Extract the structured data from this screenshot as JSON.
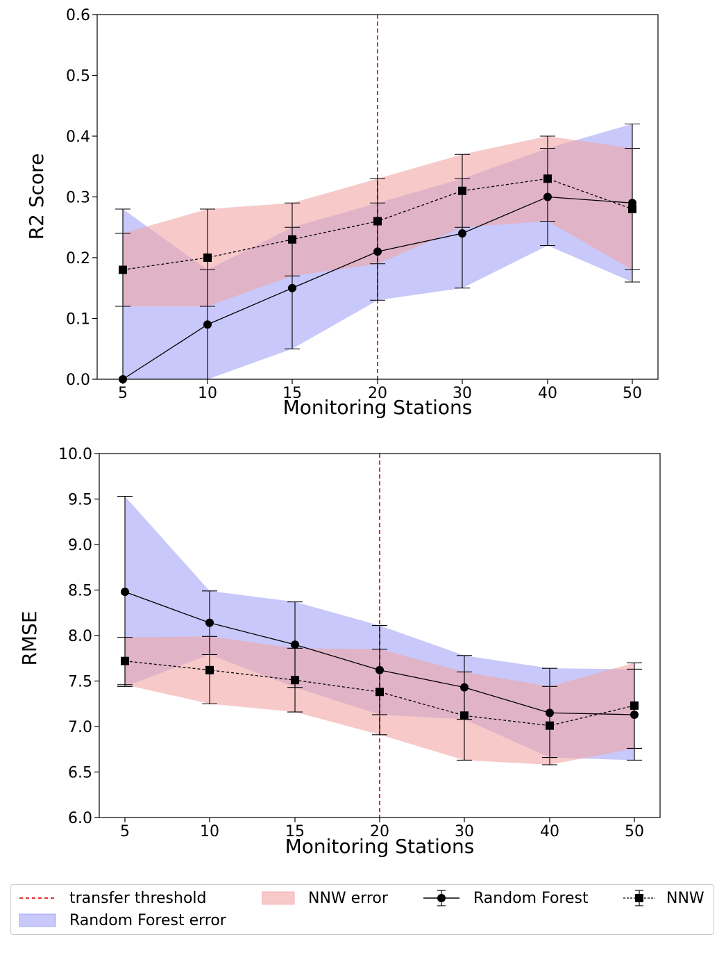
{
  "chart_data": [
    {
      "type": "line",
      "categories": [
        "5",
        "10",
        "15",
        "20",
        "30",
        "40",
        "50"
      ],
      "xlabel": "Monitoring Stations",
      "ylabel": "R2 Score",
      "ylim": [
        0.0,
        0.6
      ],
      "yticks": [
        "0.0",
        "0.1",
        "0.2",
        "0.3",
        "0.4",
        "0.5",
        "0.6"
      ],
      "threshold_category": "20",
      "grid": false,
      "series": [
        {
          "name": "Random Forest",
          "values": [
            0.0,
            0.09,
            0.15,
            0.21,
            0.24,
            0.3,
            0.29
          ],
          "lower": [
            0.0,
            0.0,
            0.05,
            0.13,
            0.15,
            0.22,
            0.16
          ],
          "upper": [
            0.28,
            0.18,
            0.25,
            0.29,
            0.33,
            0.38,
            0.42
          ]
        },
        {
          "name": "NNW",
          "values": [
            0.18,
            0.2,
            0.23,
            0.26,
            0.31,
            0.33,
            0.28
          ],
          "lower": [
            0.12,
            0.12,
            0.17,
            0.19,
            0.25,
            0.26,
            0.18
          ],
          "upper": [
            0.24,
            0.28,
            0.29,
            0.33,
            0.37,
            0.4,
            0.38
          ]
        }
      ]
    },
    {
      "type": "line",
      "categories": [
        "5",
        "10",
        "15",
        "20",
        "30",
        "40",
        "50"
      ],
      "xlabel": "Monitoring Stations",
      "ylabel": "RMSE",
      "ylim": [
        6.0,
        10.0
      ],
      "yticks": [
        "6.0",
        "6.5",
        "7.0",
        "7.5",
        "8.0",
        "8.5",
        "9.0",
        "9.5",
        "10.0"
      ],
      "threshold_category": "20",
      "grid": false,
      "series": [
        {
          "name": "Random Forest",
          "values": [
            8.48,
            8.14,
            7.9,
            7.62,
            7.43,
            7.15,
            7.13
          ],
          "lower": [
            7.44,
            7.79,
            7.43,
            7.13,
            7.08,
            6.66,
            6.63
          ],
          "upper": [
            9.53,
            8.49,
            8.37,
            8.11,
            7.78,
            7.64,
            7.63
          ]
        },
        {
          "name": "NNW",
          "values": [
            7.72,
            7.62,
            7.51,
            7.38,
            7.12,
            7.01,
            7.23
          ],
          "lower": [
            7.46,
            7.25,
            7.16,
            6.91,
            6.63,
            6.58,
            6.76
          ],
          "upper": [
            7.98,
            7.99,
            7.86,
            7.85,
            7.6,
            7.44,
            7.7
          ]
        }
      ]
    }
  ],
  "legend": {
    "placement": "bottom",
    "threshold_label": "transfer threshold",
    "rf_error_label": "Random Forest error",
    "nnw_error_label": "NNW error",
    "rf_label": "Random Forest",
    "nnw_label": "NNW"
  },
  "colors": {
    "threshold": "#e03030",
    "rf_fill": "#9a9af5",
    "nnw_fill": "#f2a5a5",
    "line": "#000000"
  }
}
